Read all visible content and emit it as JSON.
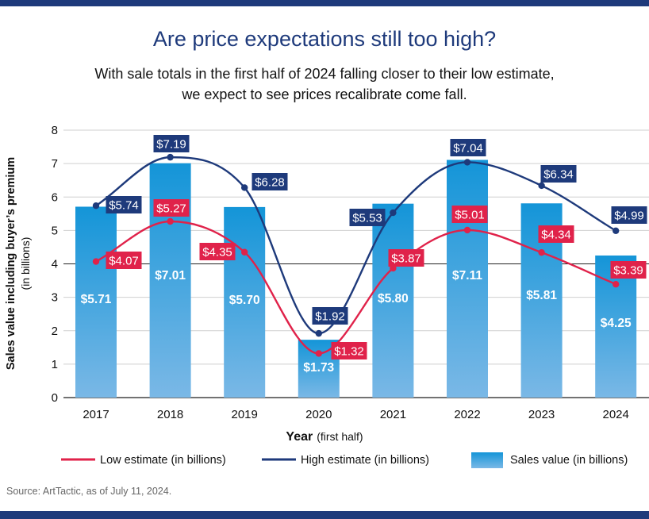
{
  "title": "Are price expectations still too high?",
  "subtitle": "With sale totals in the first half of 2024 falling closer to their low estimate, we expect to see prices recalibrate come fall.",
  "source": "Source: ArtTactic, as of July 11, 2024.",
  "colors": {
    "brand": "#1e3a7b",
    "low": "#e0224a",
    "high": "#1e3a7b",
    "bar_top": "#1495d8",
    "bar_bottom": "#7ab8e6"
  },
  "chart_data": {
    "type": "bar",
    "categories": [
      "2017",
      "2018",
      "2019",
      "2020",
      "2021",
      "2022",
      "2023",
      "2024"
    ],
    "series": [
      {
        "name": "Sales value (in billions)",
        "kind": "bar",
        "values": [
          5.71,
          7.01,
          5.7,
          1.73,
          5.8,
          7.11,
          5.81,
          4.25
        ],
        "labels": [
          "$5.71",
          "$7.01",
          "$5.70",
          "$1.73",
          "$5.80",
          "$7.11",
          "$5.81",
          "$4.25"
        ]
      },
      {
        "name": "Low estimate (in billions)",
        "kind": "line",
        "values": [
          4.07,
          5.27,
          4.35,
          1.32,
          3.87,
          5.01,
          4.34,
          3.39
        ],
        "labels": [
          "$4.07",
          "$5.27",
          "$4.35",
          "$1.32",
          "$3.87",
          "$5.01",
          "$4.34",
          "$3.39"
        ]
      },
      {
        "name": "High estimate (in billions)",
        "kind": "line",
        "values": [
          5.74,
          7.19,
          6.28,
          1.92,
          5.53,
          7.04,
          6.34,
          4.99
        ],
        "labels": [
          "$5.74",
          "$7.19",
          "$6.28",
          "$1.92",
          "$5.53",
          "$7.04",
          "$6.34",
          "$4.99"
        ]
      }
    ],
    "xlabel": "Year",
    "xlabel_note": "(first half)",
    "ylabel": "Sales value including buyer’s premium",
    "ylabel_note": "(in billions)",
    "ylim": [
      0,
      8
    ],
    "yticks": [
      "0",
      "1",
      "2",
      "3",
      "4",
      "5",
      "6",
      "7",
      "8"
    ],
    "grid": true,
    "legend_position": "bottom"
  }
}
